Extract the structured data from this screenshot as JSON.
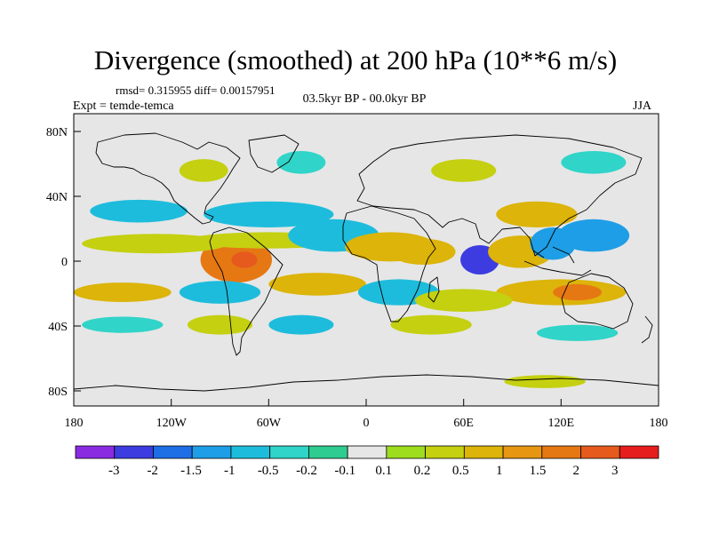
{
  "title": "Divergence (smoothed) at 200 hPa (10**6 m/s)",
  "stats_text": "rmsd= 0.315955 diff= 0.00157951",
  "subtitle": "03.5kyr BP - 00.0kyr BP",
  "experiment_label": "Expt = temde-temca",
  "season_label": "JJA",
  "y_ticks": [
    "80N",
    "40N",
    "0",
    "40S",
    "80S"
  ],
  "x_ticks": [
    "180",
    "120W",
    "60W",
    "0",
    "60E",
    "120E",
    "180"
  ],
  "colorbar": {
    "labels": [
      "-3",
      "-2",
      "-1.5",
      "-1",
      "-0.5",
      "-0.2",
      "-0.1",
      "0.1",
      "0.2",
      "0.5",
      "1",
      "1.5",
      "2",
      "3"
    ],
    "colors": [
      "#8a2be2",
      "#3c3ce0",
      "#1e6ee6",
      "#1e9ee6",
      "#1ebcdc",
      "#30d4c8",
      "#2ecc90",
      "#e6e6e6",
      "#9edc1e",
      "#c4d010",
      "#dcb40a",
      "#e69610",
      "#e67814",
      "#e65a1e",
      "#e61e1e"
    ]
  },
  "palette": {
    "background": "#e6e6e6",
    "frame": "#000000"
  },
  "chart_data": {
    "type": "heatmap",
    "title": "Divergence (smoothed) at 200 hPa (10**6 m/s)",
    "subtitle": "03.5kyr BP - 00.0kyr BP",
    "variable_units": "10**6 m/s",
    "x_range": [
      -180,
      180
    ],
    "y_range": [
      -90,
      90
    ],
    "x_tick_values": [
      -180,
      -120,
      -60,
      0,
      60,
      120,
      180
    ],
    "y_tick_values": [
      80,
      40,
      0,
      -40,
      -80
    ],
    "levels": [
      -3,
      -2,
      -1.5,
      -1,
      -0.5,
      -0.2,
      -0.1,
      0.1,
      0.2,
      0.5,
      1,
      1.5,
      2,
      3
    ],
    "regions": [
      {
        "lon": -80,
        "lat": 0,
        "rx": 22,
        "ry": 14,
        "value": 2.0
      },
      {
        "lon": -75,
        "lat": 0,
        "rx": 8,
        "ry": 5,
        "value": 2.5
      },
      {
        "lon": -130,
        "lat": 10,
        "rx": 45,
        "ry": 6,
        "value": 0.5
      },
      {
        "lon": -140,
        "lat": 30,
        "rx": 30,
        "ry": 7,
        "value": -0.5
      },
      {
        "lon": -60,
        "lat": 28,
        "rx": 40,
        "ry": 8,
        "value": -0.8
      },
      {
        "lon": -60,
        "lat": 12,
        "rx": 50,
        "ry": 5,
        "value": 0.5
      },
      {
        "lon": -20,
        "lat": 15,
        "rx": 28,
        "ry": 10,
        "value": -0.6
      },
      {
        "lon": 15,
        "lat": 8,
        "rx": 28,
        "ry": 9,
        "value": 0.8
      },
      {
        "lon": 35,
        "lat": 5,
        "rx": 20,
        "ry": 8,
        "value": 0.7
      },
      {
        "lon": 70,
        "lat": 0,
        "rx": 12,
        "ry": 9,
        "value": -2.0
      },
      {
        "lon": 70,
        "lat": 0,
        "rx": 5,
        "ry": 4,
        "value": -2.5
      },
      {
        "lon": 95,
        "lat": 5,
        "rx": 20,
        "ry": 10,
        "value": 1.0
      },
      {
        "lon": 115,
        "lat": 10,
        "rx": 14,
        "ry": 10,
        "value": -1.2
      },
      {
        "lon": 140,
        "lat": 15,
        "rx": 22,
        "ry": 10,
        "value": -1.0
      },
      {
        "lon": 105,
        "lat": 28,
        "rx": 25,
        "ry": 8,
        "value": 0.6
      },
      {
        "lon": 120,
        "lat": -20,
        "rx": 40,
        "ry": 8,
        "value": 1.0
      },
      {
        "lon": 130,
        "lat": -20,
        "rx": 15,
        "ry": 5,
        "value": 1.6
      },
      {
        "lon": -150,
        "lat": -20,
        "rx": 30,
        "ry": 6,
        "value": 0.8
      },
      {
        "lon": -90,
        "lat": -20,
        "rx": 25,
        "ry": 7,
        "value": -0.6
      },
      {
        "lon": -30,
        "lat": -15,
        "rx": 30,
        "ry": 7,
        "value": 0.6
      },
      {
        "lon": 20,
        "lat": -20,
        "rx": 25,
        "ry": 8,
        "value": -0.5
      },
      {
        "lon": 60,
        "lat": -25,
        "rx": 30,
        "ry": 7,
        "value": 0.5
      },
      {
        "lon": -150,
        "lat": -40,
        "rx": 25,
        "ry": 5,
        "value": -0.3
      },
      {
        "lon": -90,
        "lat": -40,
        "rx": 20,
        "ry": 6,
        "value": 0.5
      },
      {
        "lon": -40,
        "lat": -40,
        "rx": 20,
        "ry": 6,
        "value": -0.5
      },
      {
        "lon": 40,
        "lat": -40,
        "rx": 25,
        "ry": 6,
        "value": 0.4
      },
      {
        "lon": 130,
        "lat": -45,
        "rx": 25,
        "ry": 5,
        "value": -0.4
      },
      {
        "lon": -100,
        "lat": 55,
        "rx": 15,
        "ry": 7,
        "value": 0.4
      },
      {
        "lon": -40,
        "lat": 60,
        "rx": 15,
        "ry": 7,
        "value": -0.4
      },
      {
        "lon": 60,
        "lat": 55,
        "rx": 20,
        "ry": 7,
        "value": 0.4
      },
      {
        "lon": 140,
        "lat": 60,
        "rx": 20,
        "ry": 7,
        "value": -0.4
      },
      {
        "lon": 110,
        "lat": -75,
        "rx": 25,
        "ry": 4,
        "value": 0.3
      }
    ]
  }
}
